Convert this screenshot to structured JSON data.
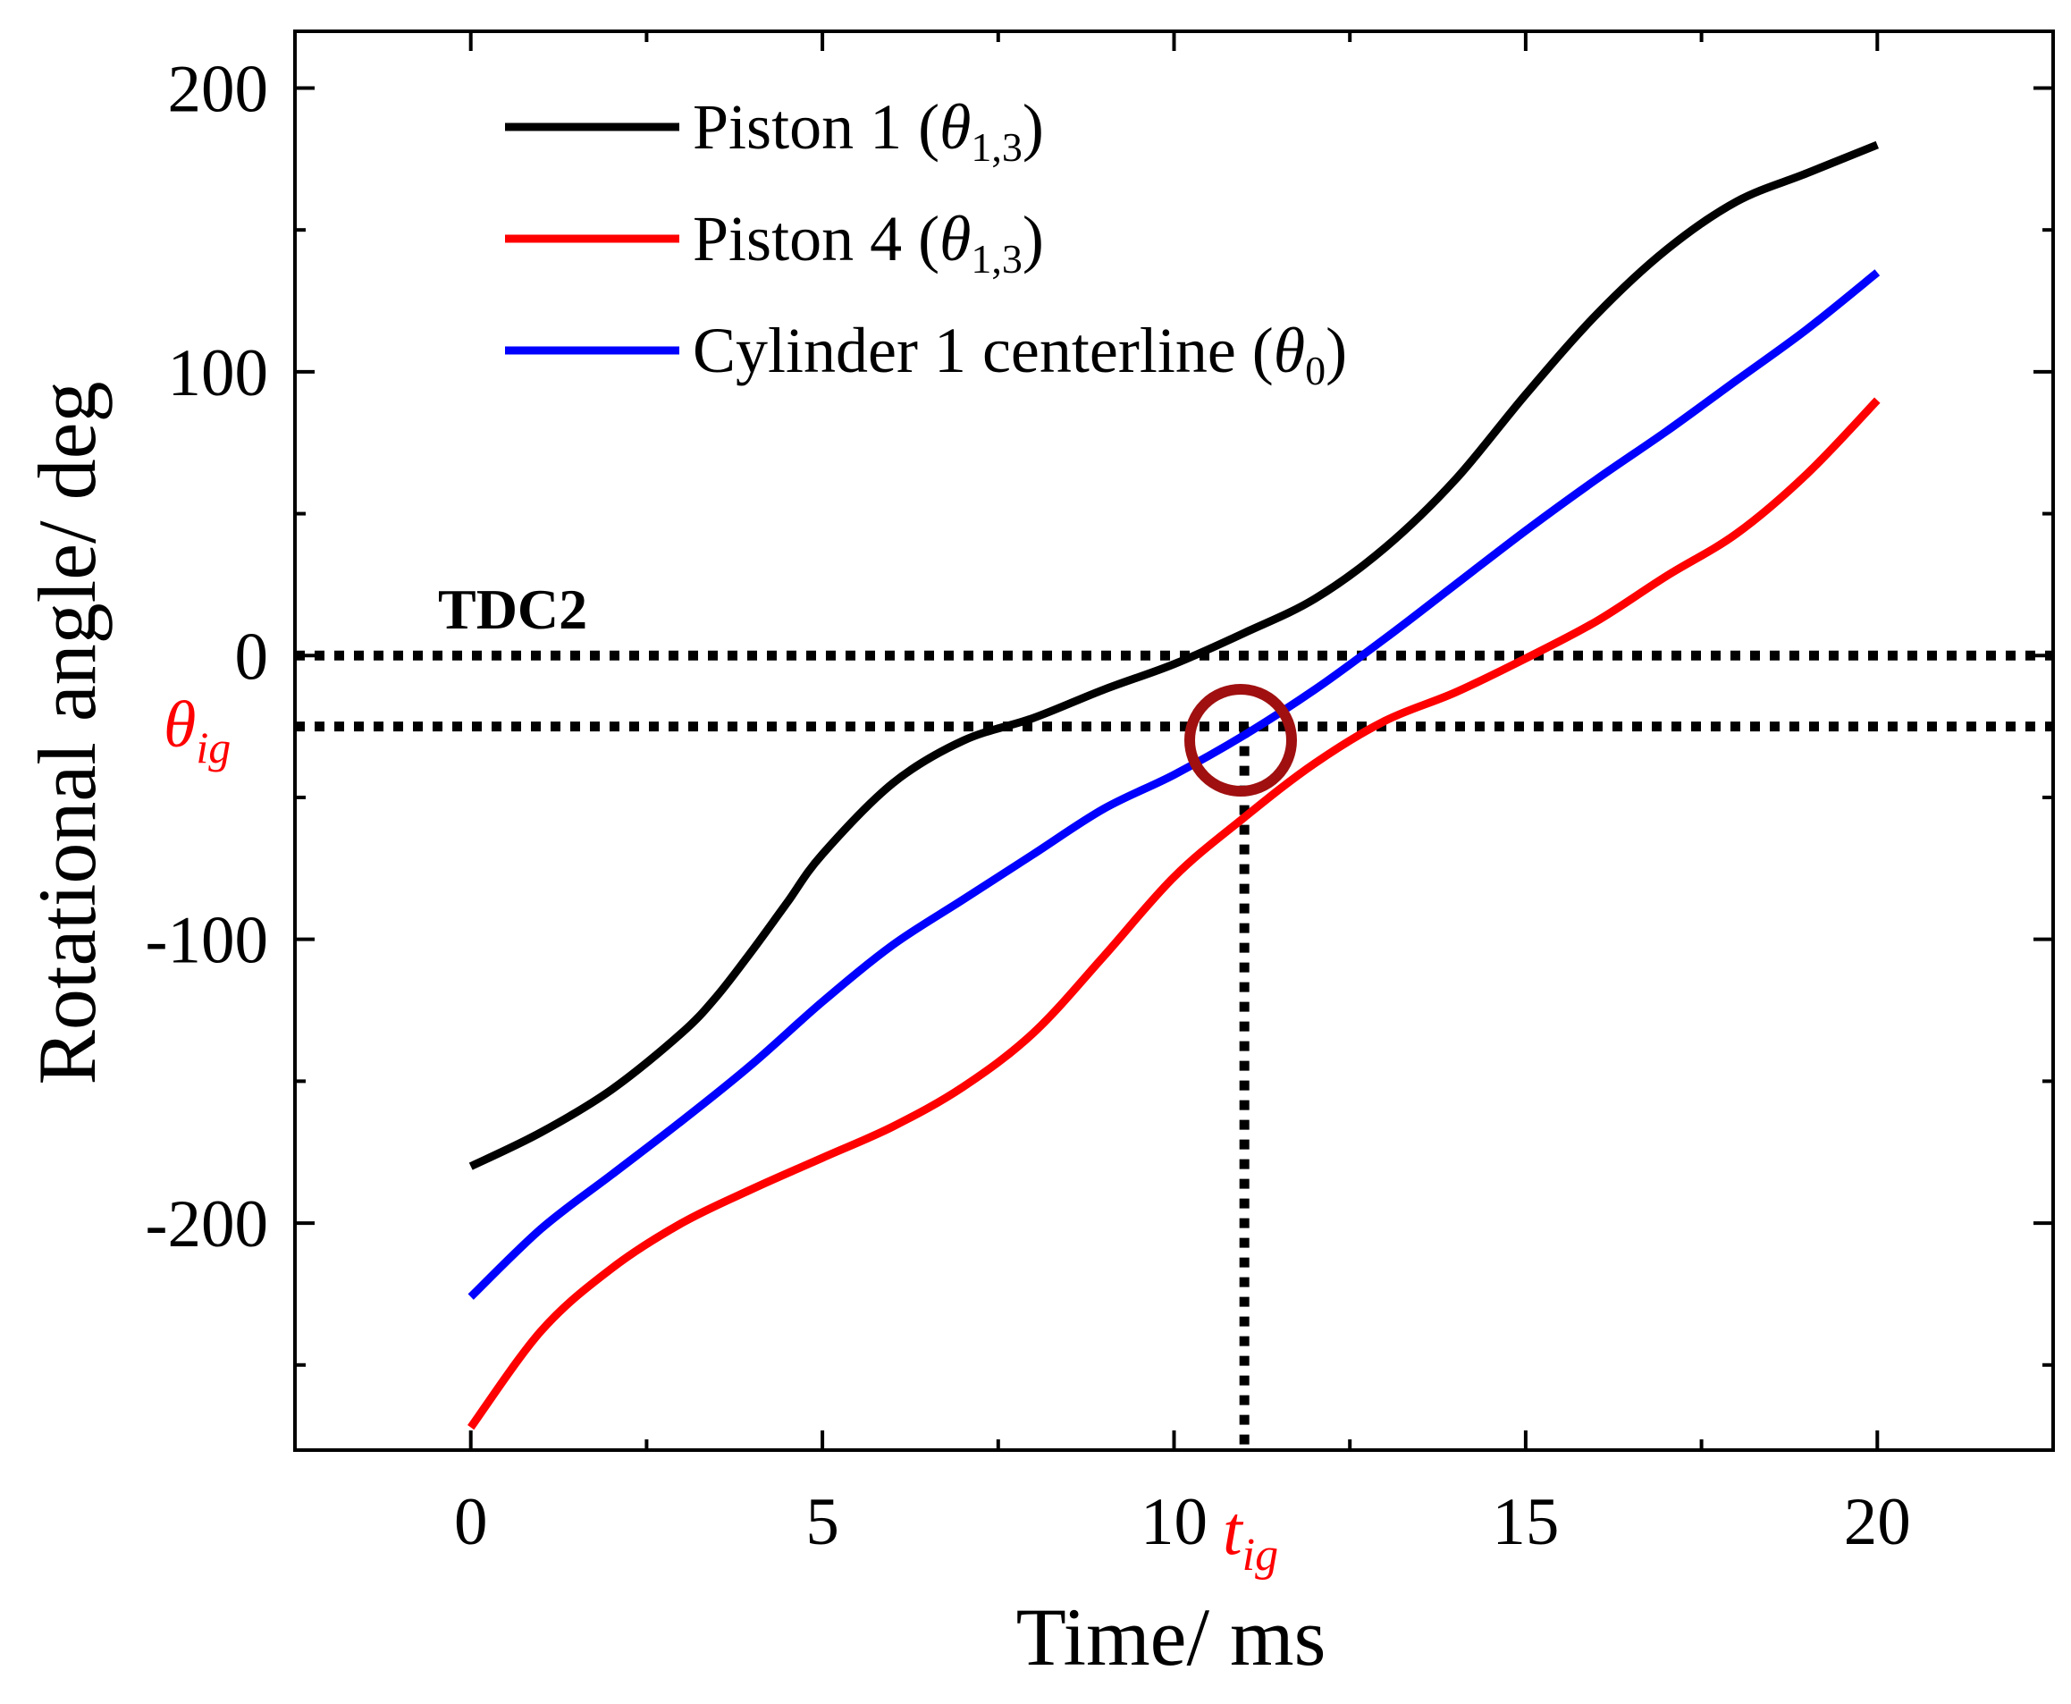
{
  "chart_data": {
    "type": "line",
    "xlabel": "Time/ ms",
    "ylabel": "Rotational angle/ deg",
    "xlim": [
      -2.5,
      22.5
    ],
    "ylim": [
      -280,
      220
    ],
    "x_ticks": [
      0,
      5,
      10,
      15,
      20
    ],
    "x_tick_labels": [
      "0",
      "5",
      "10",
      "15",
      "20"
    ],
    "y_ticks": [
      -200,
      -100,
      0,
      100,
      200
    ],
    "y_tick_labels": [
      "-200",
      "-100",
      "0",
      "100",
      "200"
    ],
    "grid": false,
    "legend_position": "top-left",
    "series": [
      {
        "name": "Piston 1 (θ1,3)",
        "legend_main": "Piston 1 (",
        "legend_sym": "θ",
        "legend_sub": "1,3",
        "legend_close": ")",
        "color": "#000000",
        "x": [
          0,
          1,
          2,
          3,
          3.5,
          4,
          4.5,
          5,
          6,
          7,
          8,
          9,
          10,
          11,
          12,
          13,
          14,
          15,
          16,
          17,
          18,
          19,
          20
        ],
        "y": [
          -180,
          -168,
          -153,
          -133,
          -120,
          -104,
          -87,
          -70,
          -45,
          -30,
          -22,
          -12,
          -3,
          8,
          20,
          38,
          62,
          92,
          120,
          143,
          160,
          170,
          180
        ]
      },
      {
        "name": "Piston 4 (θ1,3)",
        "legend_main": "Piston 4 (",
        "legend_sym": "θ",
        "legend_sub": "1,3",
        "legend_close": ")",
        "color": "#ff0000",
        "x": [
          0,
          1,
          2,
          3,
          4,
          5,
          6,
          7,
          8,
          9,
          10,
          11,
          12,
          13,
          14,
          15,
          16,
          17,
          18,
          19,
          20
        ],
        "y": [
          -272,
          -238,
          -216,
          -200,
          -188,
          -177,
          -166,
          -152,
          -133,
          -106,
          -78,
          -57,
          -38,
          -23,
          -13,
          -1,
          12,
          28,
          43,
          64,
          90
        ]
      },
      {
        "name": "Cylinder 1 centerline (θ0)",
        "legend_main": "Cylinder 1 centerline (",
        "legend_sym": "θ",
        "legend_sub": "0",
        "legend_close": ")",
        "color": "#0000ff",
        "x": [
          0,
          1,
          2,
          3,
          4,
          5,
          6,
          7,
          8,
          9,
          10,
          11,
          12,
          13,
          14,
          15,
          16,
          17,
          18,
          19,
          20
        ],
        "y": [
          -226,
          -202,
          -183,
          -164,
          -144,
          -122,
          -102,
          -86,
          -70,
          -54,
          -42,
          -28,
          -12,
          6,
          25,
          44,
          62,
          79,
          97,
          115,
          135
        ]
      }
    ],
    "reference_lines": {
      "tdc_y": 0,
      "ignition_angle_y": -25,
      "ignition_time_x": 11
    },
    "annotations": {
      "tdc_label": "TDC2",
      "theta_ig_sym": "θ",
      "theta_ig_sub": "ig",
      "t_ig_sym": "t",
      "t_ig_sub": "ig"
    },
    "colors": {
      "axis": "#000000",
      "reference_line": "#000000",
      "annotation_red": "#ff0000",
      "marker_circle": "#a01010"
    }
  }
}
